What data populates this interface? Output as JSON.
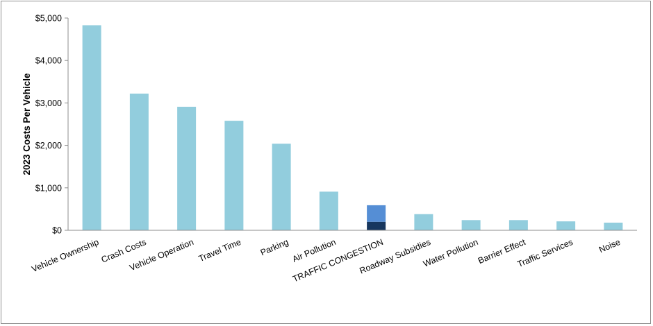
{
  "chart_data": {
    "type": "bar",
    "title": "",
    "xlabel": "",
    "ylabel": "2023 Costs Per Vehicle",
    "ylim": [
      0,
      5000
    ],
    "y_ticks": [
      0,
      1000,
      2000,
      3000,
      4000,
      5000
    ],
    "y_tick_labels": [
      "$0",
      "$1,000",
      "$2,000",
      "$3,000",
      "$4,000",
      "$5,000"
    ],
    "grid": false,
    "legend": "none",
    "colors": {
      "bar": "#92cddd",
      "highlight_lower": "#17375e",
      "highlight_upper": "#558ed5"
    },
    "categories": [
      "Vehicle Ownership",
      "Crash Costs",
      "Vehicle Operation",
      "Travel Time",
      "Parking",
      "Air Pollution",
      "TRAFFIC CONGESTION",
      "Roadway Subsidies",
      "Water Pollution",
      "Barrier Effect",
      "Traffic Services",
      "Noise"
    ],
    "values": [
      4830,
      3220,
      2910,
      2580,
      2040,
      910,
      590,
      380,
      240,
      240,
      210,
      180
    ],
    "highlight": {
      "category": "TRAFFIC CONGESTION",
      "segments": [
        200,
        390
      ]
    }
  }
}
